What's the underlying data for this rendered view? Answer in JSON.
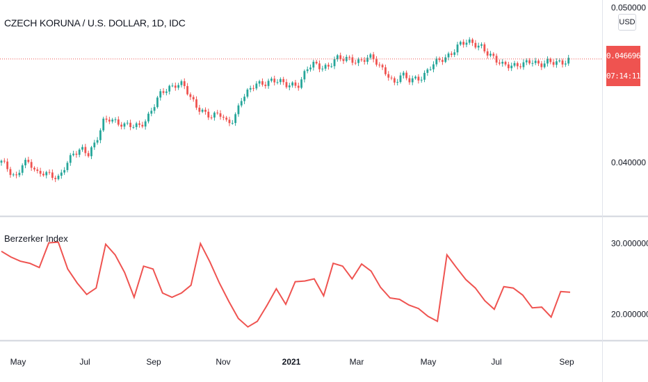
{
  "header": {
    "symbol_title": "CZECH KORUNA / U.S. DOLLAR, 1D, IDC",
    "currency": "USD"
  },
  "price_tag": {
    "price": "0.046696",
    "countdown": "07:14:11"
  },
  "indicator": {
    "title": "Berzerker Index"
  },
  "colors": {
    "up": "#26a69a",
    "down": "#ef5350",
    "indicator_line": "#ef5350",
    "last_price_line": "#ef5350",
    "pane_border": "#e0e3eb",
    "axis_text": "#131722"
  },
  "chart_data": [
    {
      "type": "candlestick",
      "title": "CZECH KORUNA / U.S. DOLLAR, 1D, IDC",
      "x_tick_labels": [
        "May",
        "Jul",
        "Sep",
        "Nov",
        "2021",
        "Mar",
        "May",
        "Jul",
        "Sep"
      ],
      "y_tick_labels": [
        "0.050000",
        "0.040000"
      ],
      "ylim": [
        0.0366,
        0.0505
      ],
      "last_price": 0.046696,
      "close_series": [
        0.04,
        0.0395,
        0.0391,
        0.0401,
        0.0398,
        0.0392,
        0.0395,
        0.0392,
        0.0389,
        0.0399,
        0.0407,
        0.041,
        0.0405,
        0.0412,
        0.0427,
        0.043,
        0.0425,
        0.0423,
        0.0424,
        0.0425,
        0.0428,
        0.0436,
        0.0445,
        0.0449,
        0.0451,
        0.045,
        0.0441,
        0.0436,
        0.0433,
        0.0429,
        0.0431,
        0.0426,
        0.0429,
        0.0441,
        0.0445,
        0.0451,
        0.0452,
        0.0453,
        0.0452,
        0.045,
        0.0451,
        0.0451,
        0.046,
        0.0463,
        0.0462,
        0.0463,
        0.0467,
        0.0466,
        0.0467,
        0.0466,
        0.0467,
        0.0467,
        0.0462,
        0.0459,
        0.0451,
        0.0456,
        0.0453,
        0.0455,
        0.0456,
        0.0461,
        0.0465,
        0.0468,
        0.0472,
        0.0476,
        0.0477,
        0.0477,
        0.0476,
        0.047,
        0.0465,
        0.0463,
        0.0464,
        0.0463,
        0.0463,
        0.0465,
        0.0464,
        0.0466,
        0.0464,
        0.0463,
        0.0467
      ]
    },
    {
      "type": "line",
      "title": "Berzerker Index",
      "x_tick_labels": [
        "May",
        "Jul",
        "Sep",
        "Nov",
        "2021",
        "Mar",
        "May",
        "Jul",
        "Sep"
      ],
      "y_tick_labels": [
        "30.000000",
        "20.000000"
      ],
      "ylim": [
        16.5,
        33.5
      ],
      "values": [
        28.9,
        28.1,
        27.5,
        27.2,
        26.6,
        30.1,
        30.2,
        26.4,
        24.4,
        22.8,
        23.7,
        29.9,
        28.4,
        25.9,
        22.4,
        26.8,
        26.4,
        23.0,
        22.4,
        23.0,
        24.1,
        30.0,
        27.4,
        24.4,
        21.8,
        19.4,
        18.2,
        19.0,
        21.2,
        23.6,
        21.4,
        24.6,
        24.7,
        25.0,
        22.6,
        27.2,
        26.8,
        25.0,
        27.1,
        26.1,
        23.8,
        22.3,
        22.1,
        21.3,
        20.8,
        19.7,
        19.0,
        28.4,
        26.6,
        24.9,
        23.7,
        21.9,
        20.7,
        23.9,
        23.7,
        22.7,
        20.9,
        21.0,
        19.6,
        23.2,
        23.1
      ]
    }
  ]
}
